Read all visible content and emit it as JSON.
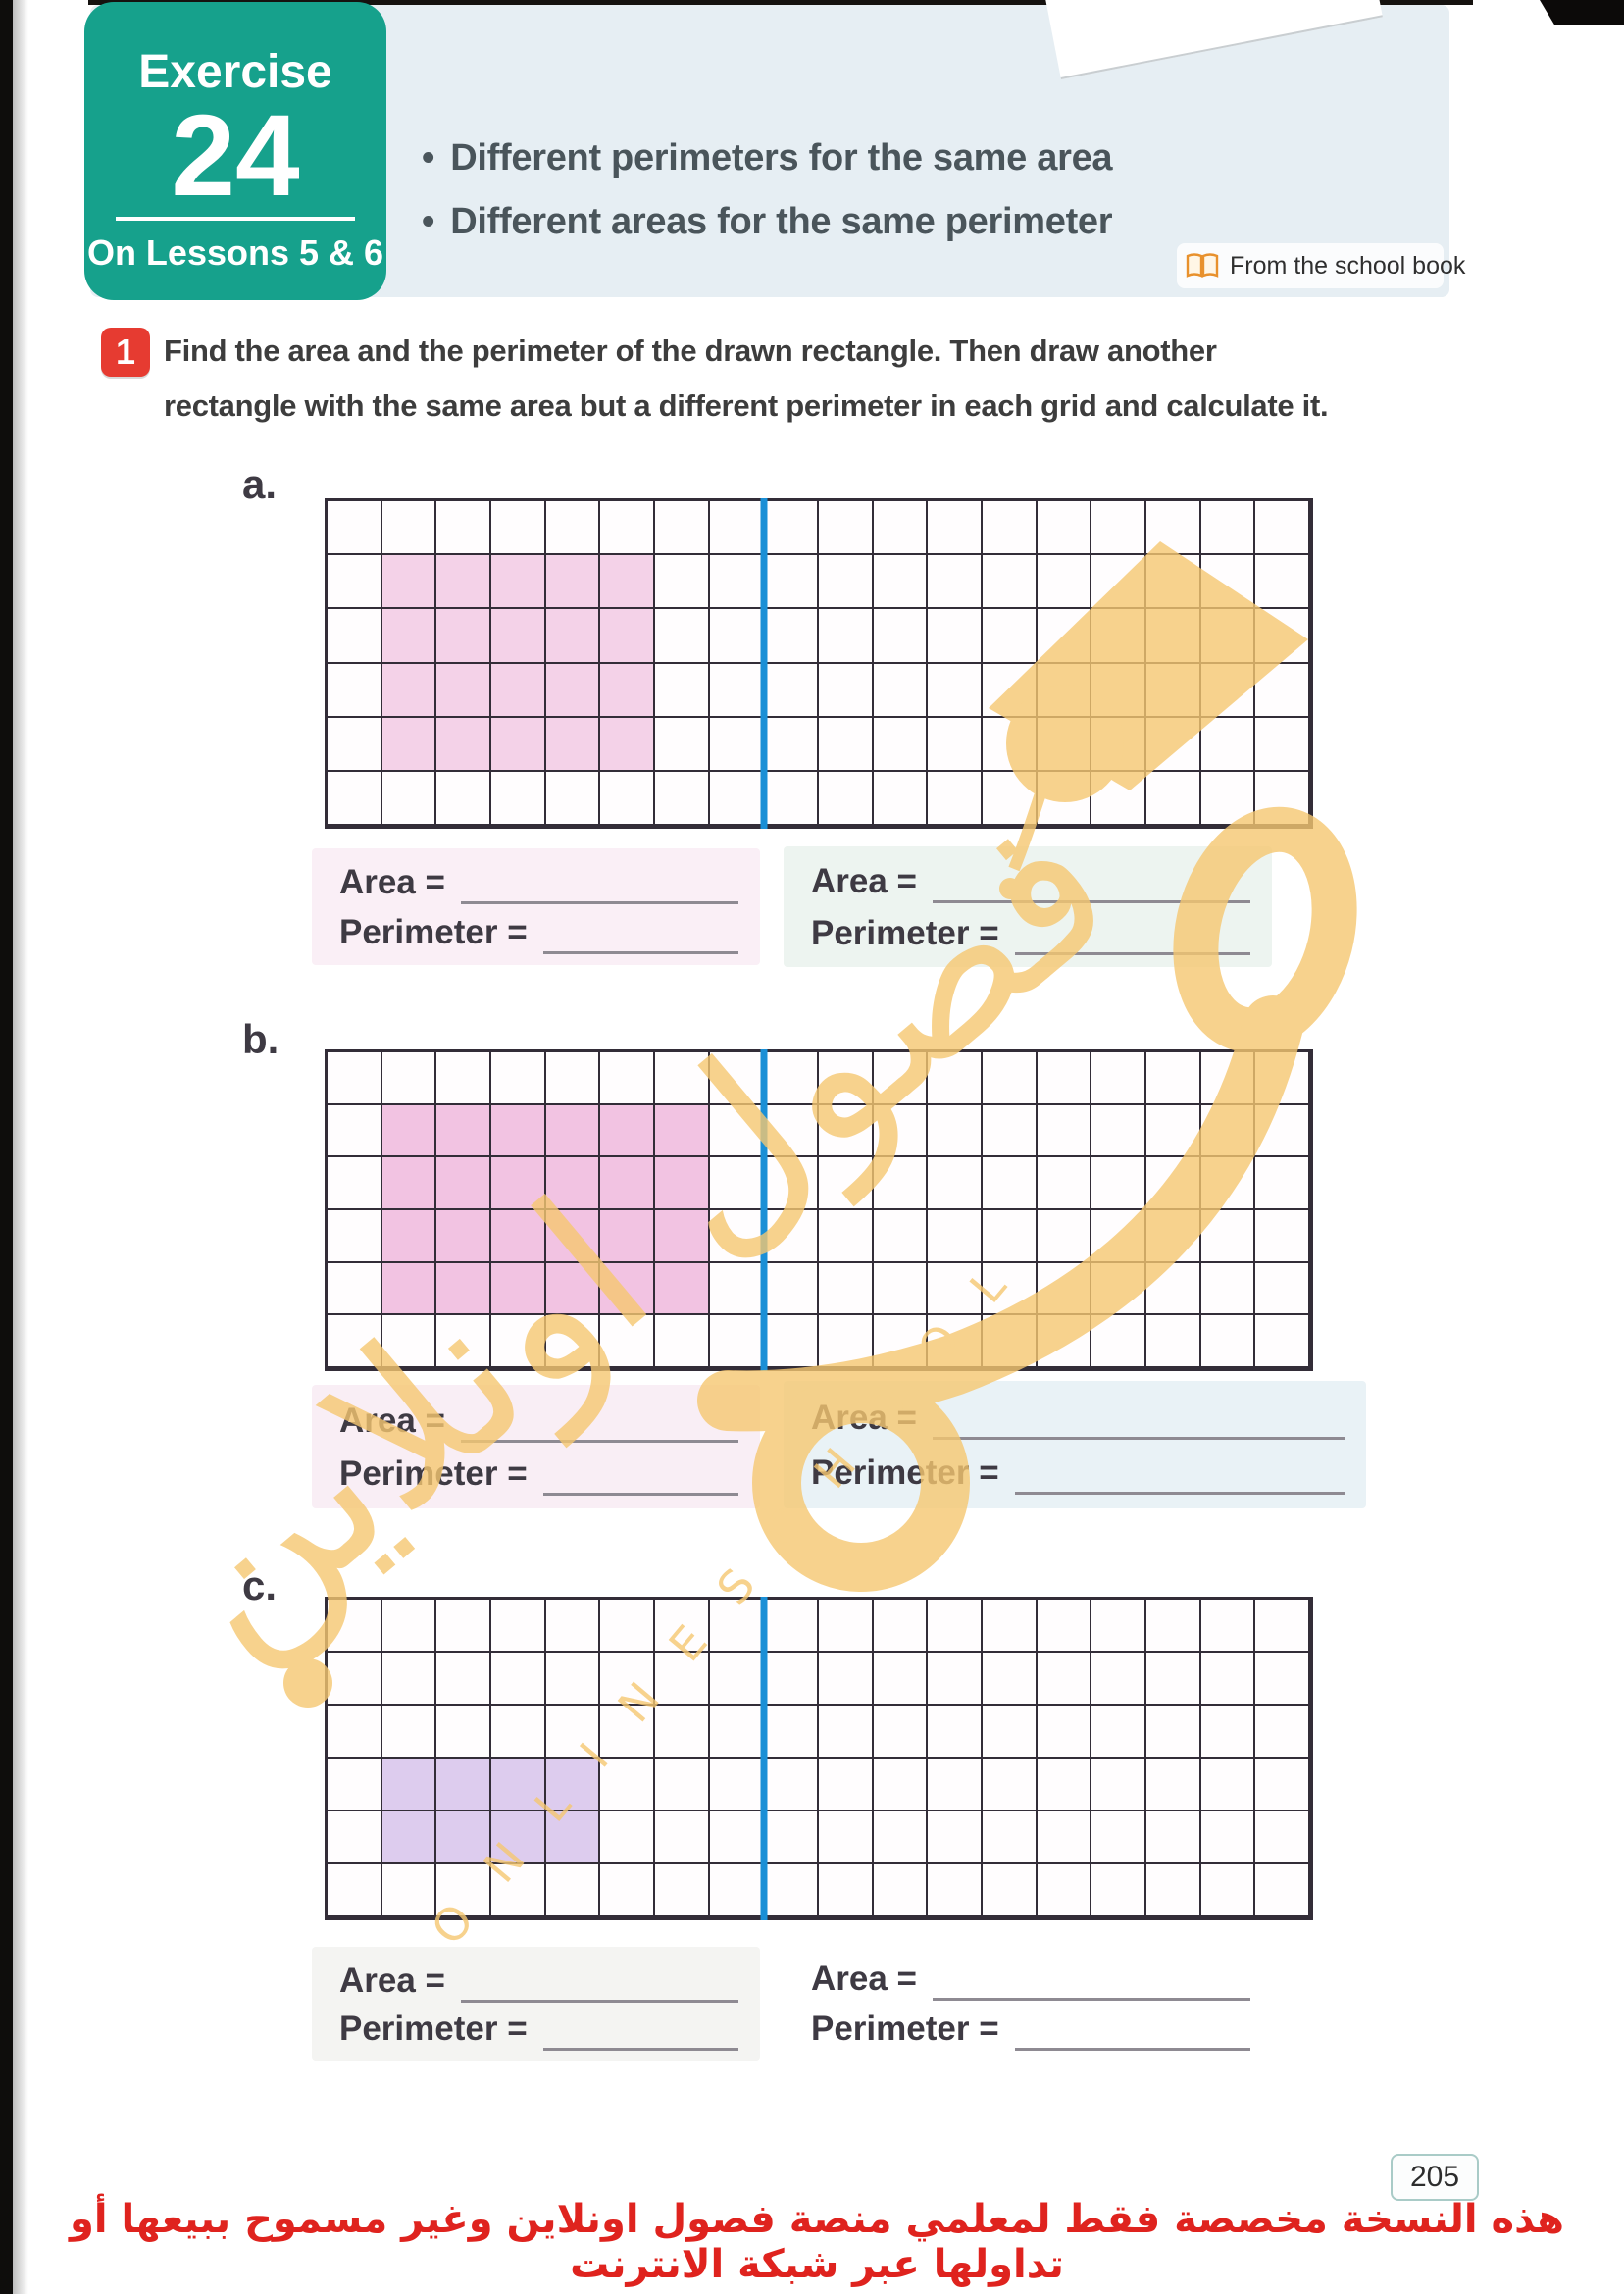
{
  "page": {
    "badge": {
      "title": "Exercise",
      "number": "24",
      "subtitle": "On Lessons 5 & 6"
    },
    "header": {
      "bullets": [
        {
          "label": "Different perimeters for the same area"
        },
        {
          "label": "Different areas for the same perimeter"
        }
      ],
      "source_label": "From the school book"
    },
    "question": {
      "number": "1",
      "line1": "Find the area and the perimeter of the drawn rectangle. Then draw another",
      "line2": "rectangle with the same area but a different perimeter in each grid and calculate it."
    },
    "fields": {
      "area_label": "Area =",
      "perimeter_label": "Perimeter ="
    },
    "grids": [
      {
        "label": "a.",
        "columns": 18,
        "rows": 6,
        "divider_after_column": 8,
        "shaded": {
          "col_start": 2,
          "row_start": 2,
          "cols": 5,
          "rows": 4,
          "color": "#f4d2e8"
        },
        "answer_left_bg": "#faeff6",
        "answer_right_bg": "#edf4f0"
      },
      {
        "label": "b.",
        "columns": 18,
        "rows": 6,
        "divider_after_column": 8,
        "shaded": {
          "col_start": 2,
          "row_start": 2,
          "cols": 6,
          "rows": 4,
          "color": "#f2c3e2"
        },
        "answer_left_bg": "#f9eef5",
        "answer_right_bg": "#e9f2f6"
      },
      {
        "label": "c.",
        "columns": 18,
        "rows": 6,
        "divider_after_column": 8,
        "shaded": {
          "col_start": 2,
          "row_start": 4,
          "cols": 4,
          "rows": 2,
          "color": "#ddccee"
        },
        "answer_left_bg": "#f4f4f2",
        "answer_right_bg": "#ffffff"
      }
    ],
    "watermark": {
      "arabic": "فصول اونلاين",
      "latin": "O N L I N E  S C H O O L"
    },
    "footer": {
      "page_number": "205",
      "notice": "هذه النسخة مخصصة فقط لمعلمي منصة فصول اونلاين وغير مسموح ببيعها أو تداولها عبر شبكة الانترنت"
    },
    "colors": {
      "teal": "#16a18c",
      "band": "#e6eef3",
      "bullet_text": "#4a555b",
      "question_red": "#e63b31",
      "grid_line": "#332d38",
      "divider_blue": "#1a8fd6",
      "watermark_orange": "#f5c771",
      "footer_red": "#df231e",
      "text_dark": "#3e3a43",
      "answer_line": "#8e8a92",
      "book_icon_orange": "#e8912d"
    }
  }
}
